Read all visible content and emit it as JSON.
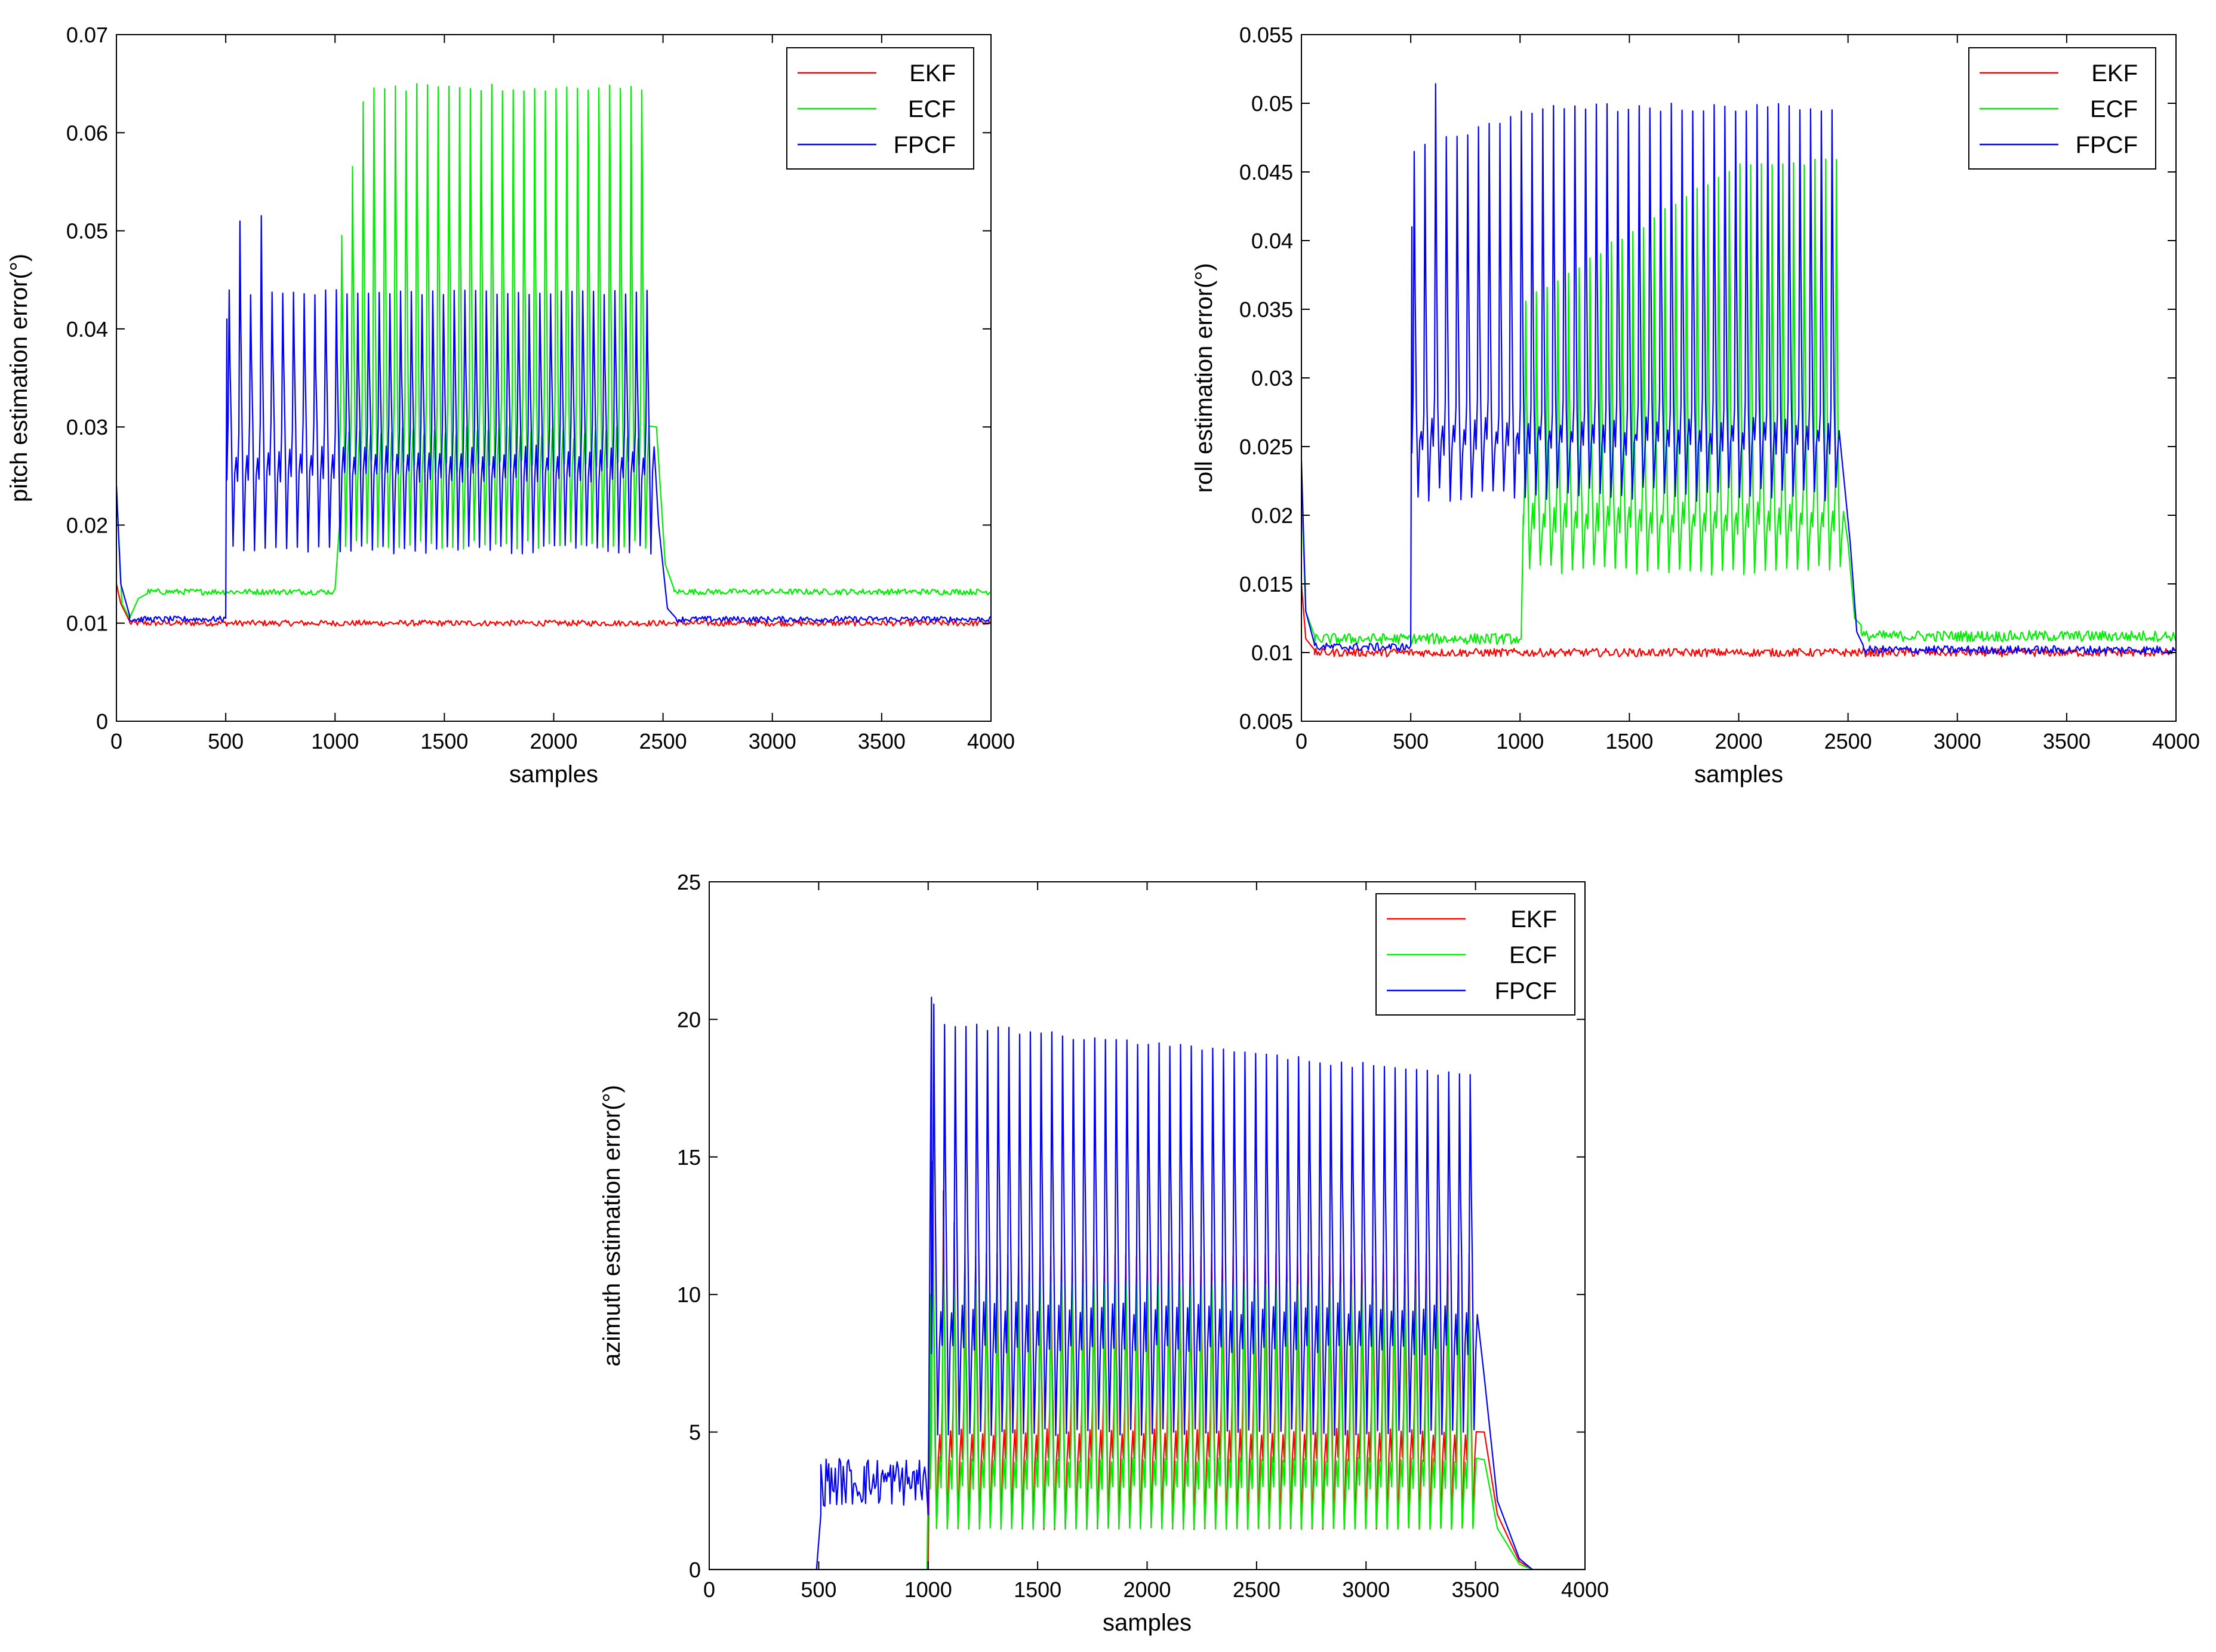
{
  "chart_data": [
    {
      "type": "line",
      "xlabel": "samples",
      "ylabel": "pitch estimation error(°)",
      "xlim": [
        0,
        4000
      ],
      "ylim": [
        0,
        0.07
      ],
      "xticks": [
        0,
        500,
        1000,
        1500,
        2000,
        2500,
        3000,
        3500,
        4000
      ],
      "xtick_labels": [
        "0",
        "500",
        "1000",
        "1500",
        "2000",
        "2500",
        "3000",
        "3500",
        "4000"
      ],
      "yticks": [
        0,
        0.01,
        0.02,
        0.03,
        0.04,
        0.05,
        0.06,
        0.07
      ],
      "ytick_labels": [
        "0",
        "0.01",
        "0.02",
        "0.03",
        "0.04",
        "0.05",
        "0.06",
        "0.07"
      ],
      "legend_position": "top-right",
      "series": [
        {
          "name": "EKF",
          "color": "#ff0000",
          "segments": [
            {
              "kind": "pts",
              "pts": [
                [
                  0,
                  0.014
                ],
                [
                  20,
                  0.012
                ],
                [
                  60,
                  0.0102
                ]
              ]
            },
            {
              "kind": "flat",
              "x0": 60,
              "x1": 4000,
              "base": 0.01,
              "noise": 0.0003
            }
          ]
        },
        {
          "name": "ECF",
          "color": "#00ee00",
          "segments": [
            {
              "kind": "pts",
              "pts": [
                [
                  0,
                  0.024
                ],
                [
                  25,
                  0.012
                ],
                [
                  60,
                  0.0105
                ],
                [
                  100,
                  0.0125
                ],
                [
                  140,
                  0.013
                ]
              ]
            },
            {
              "kind": "flat",
              "x0": 140,
              "x1": 990,
              "base": 0.0132,
              "noise": 0.0003
            },
            {
              "kind": "pts",
              "pts": [
                [
                  1000,
                  0.0135
                ],
                [
                  1020,
                  0.02
                ]
              ]
            },
            {
              "kind": "osc",
              "x0": 1020,
              "x1": 2460,
              "period": 49,
              "peakStart": 0.05,
              "peakEnd": 0.065,
              "peakRamp": 110,
              "troughs": [
                0.018,
                0.026,
                0.033
              ]
            },
            {
              "kind": "pts",
              "pts": [
                [
                  2470,
                  0.03
                ],
                [
                  2510,
                  0.016
                ],
                [
                  2550,
                  0.0135
                ]
              ]
            },
            {
              "kind": "flat",
              "x0": 2550,
              "x1": 4000,
              "base": 0.0132,
              "noise": 0.0003
            }
          ]
        },
        {
          "name": "FPCF",
          "color": "#0000ff",
          "segments": [
            {
              "kind": "pts",
              "pts": [
                [
                  0,
                  0.024
                ],
                [
                  20,
                  0.014
                ],
                [
                  60,
                  0.0108
                ]
              ]
            },
            {
              "kind": "flat",
              "x0": 60,
              "x1": 495,
              "base": 0.0104,
              "noise": 0.0003
            },
            {
              "kind": "pts",
              "pts": [
                [
                  500,
                  0.0105
                ],
                [
                  505,
                  0.041
                ]
              ]
            },
            {
              "kind": "osc",
              "x0": 505,
              "x1": 2470,
              "period": 49,
              "peakStart": 0.044,
              "peakEnd": 0.044,
              "peakRamp": 1,
              "peakSpecial": [
                [
                  1,
                  0.0515
                ],
                [
                  3,
                  0.052
                ]
              ],
              "troughs": [
                0.0175,
                0.025,
                0.03
              ]
            },
            {
              "kind": "pts",
              "pts": [
                [
                  2480,
                  0.02
                ],
                [
                  2520,
                  0.0115
                ],
                [
                  2560,
                  0.0105
                ]
              ]
            },
            {
              "kind": "flat",
              "x0": 2560,
              "x1": 4000,
              "base": 0.0104,
              "noise": 0.0003
            }
          ]
        }
      ]
    },
    {
      "type": "line",
      "xlabel": "samples",
      "ylabel": "roll estimation error(°)",
      "xlim": [
        0,
        4000
      ],
      "ylim": [
        0.005,
        0.055
      ],
      "xticks": [
        0,
        500,
        1000,
        1500,
        2000,
        2500,
        3000,
        3500,
        4000
      ],
      "xtick_labels": [
        "0",
        "500",
        "1000",
        "1500",
        "2000",
        "2500",
        "3000",
        "3500",
        "4000"
      ],
      "yticks": [
        0.005,
        0.01,
        0.015,
        0.02,
        0.025,
        0.03,
        0.035,
        0.04,
        0.045,
        0.05,
        0.055
      ],
      "ytick_labels": [
        "0.005",
        "0.01",
        "0.015",
        "0.02",
        "0.025",
        "0.03",
        "0.035",
        "0.04",
        "0.045",
        "0.05",
        "0.055"
      ],
      "legend_position": "top-right",
      "series": [
        {
          "name": "EKF",
          "color": "#ff0000",
          "segments": [
            {
              "kind": "pts",
              "pts": [
                [
                  0,
                  0.015
                ],
                [
                  20,
                  0.011
                ],
                [
                  60,
                  0.0102
                ]
              ]
            },
            {
              "kind": "flat",
              "x0": 60,
              "x1": 4000,
              "base": 0.01,
              "noise": 0.0003
            }
          ]
        },
        {
          "name": "ECF",
          "color": "#00ee00",
          "segments": [
            {
              "kind": "pts",
              "pts": [
                [
                  0,
                  0.022
                ],
                [
                  20,
                  0.013
                ],
                [
                  60,
                  0.0112
                ]
              ]
            },
            {
              "kind": "flat",
              "x0": 60,
              "x1": 1000,
              "base": 0.011,
              "noise": 0.0004
            },
            {
              "kind": "pts",
              "pts": [
                [
                  1005,
                  0.011
                ],
                [
                  1015,
                  0.02
                ]
              ]
            },
            {
              "kind": "osc",
              "x0": 1015,
              "x1": 2490,
              "period": 49,
              "peakStart": 0.036,
              "peakEnd": 0.046,
              "peakRamp": 1000,
              "troughs": [
                0.016,
                0.019,
                0.022
              ]
            },
            {
              "kind": "pts",
              "pts": [
                [
                  2500,
                  0.018
                ],
                [
                  2530,
                  0.0125
                ],
                [
                  2560,
                  0.012
                ]
              ]
            },
            {
              "kind": "flat",
              "x0": 2560,
              "x1": 4000,
              "base": 0.0112,
              "noise": 0.0004
            }
          ]
        },
        {
          "name": "FPCF",
          "color": "#0000ff",
          "segments": [
            {
              "kind": "pts",
              "pts": [
                [
                  0,
                  0.024
                ],
                [
                  20,
                  0.013
                ],
                [
                  60,
                  0.0106
                ]
              ]
            },
            {
              "kind": "flat",
              "x0": 60,
              "x1": 495,
              "base": 0.0104,
              "noise": 0.0003
            },
            {
              "kind": "pts",
              "pts": [
                [
                  500,
                  0.0105
                ],
                [
                  505,
                  0.041
                ]
              ]
            },
            {
              "kind": "osc",
              "x0": 505,
              "x1": 2500,
              "period": 49,
              "peakStart": 0.047,
              "peakEnd": 0.05,
              "peakRamp": 600,
              "peakSpecial": [
                [
                  2,
                  0.052
                ]
              ],
              "troughs": [
                0.0215,
                0.025,
                0.028
              ]
            },
            {
              "kind": "pts",
              "pts": [
                [
                  2510,
                  0.018
                ],
                [
                  2540,
                  0.0115
                ],
                [
                  2570,
                  0.0105
                ]
              ]
            },
            {
              "kind": "flat",
              "x0": 2570,
              "x1": 4000,
              "base": 0.0102,
              "noise": 0.0003
            }
          ]
        }
      ]
    },
    {
      "type": "line",
      "xlabel": "samples",
      "ylabel": "azimuth estimation error(°)",
      "xlim": [
        0,
        4000
      ],
      "ylim": [
        0,
        25
      ],
      "xticks": [
        0,
        500,
        1000,
        1500,
        2000,
        2500,
        3000,
        3500,
        4000
      ],
      "xtick_labels": [
        "0",
        "500",
        "1000",
        "1500",
        "2000",
        "2500",
        "3000",
        "3500",
        "4000"
      ],
      "yticks": [
        0,
        5,
        10,
        15,
        20,
        25
      ],
      "ytick_labels": [
        "0",
        "5",
        "10",
        "15",
        "20",
        "25"
      ],
      "legend_position": "top-right",
      "series": [
        {
          "name": "EKF",
          "color": "#ff0000",
          "segments": [
            {
              "kind": "pts",
              "pts": [
                [
                  0,
                  0
                ],
                [
                  1000,
                  0
                ],
                [
                  1010,
                  9
                ]
              ]
            },
            {
              "kind": "osc",
              "x0": 1010,
              "x1": 3530,
              "period": 49,
              "peakStart": 15,
              "peakEnd": 11.5,
              "peakRamp": 150,
              "troughs": [
                1.5,
                4,
                6
              ]
            },
            {
              "kind": "pts",
              "pts": [
                [
                  3540,
                  5
                ],
                [
                  3600,
                  2
                ],
                [
                  3700,
                  0.3
                ],
                [
                  3760,
                  0
                ],
                [
                  4000,
                  0
                ]
              ]
            }
          ]
        },
        {
          "name": "ECF",
          "color": "#00ee00",
          "segments": [
            {
              "kind": "pts",
              "pts": [
                [
                  0,
                  0
                ],
                [
                  995,
                  0
                ],
                [
                  1010,
                  10
                ]
              ]
            },
            {
              "kind": "osc",
              "x0": 1010,
              "x1": 3530,
              "period": 49,
              "peakStart": 14,
              "peakEnd": 10.5,
              "peakRamp": 150,
              "troughs": [
                1.5,
                3,
                5
              ]
            },
            {
              "kind": "pts",
              "pts": [
                [
                  3540,
                  4
                ],
                [
                  3600,
                  1.5
                ],
                [
                  3700,
                  0.2
                ],
                [
                  3760,
                  0
                ],
                [
                  4000,
                  0
                ]
              ]
            }
          ]
        },
        {
          "name": "FPCF",
          "color": "#0000ff",
          "segments": [
            {
              "kind": "pts",
              "pts": [
                [
                  0,
                  0
                ],
                [
                  490,
                  0
                ],
                [
                  510,
                  2
                ]
              ]
            },
            {
              "kind": "flat",
              "x0": 510,
              "x1": 990,
              "base": 3.2,
              "noise": 0.9
            },
            {
              "kind": "pts",
              "pts": [
                [
                  1000,
                  2
                ],
                [
                  1015,
                  20.8
                ]
              ]
            },
            {
              "kind": "osc",
              "x0": 1015,
              "x1": 3530,
              "period": 49,
              "peakStart": 20,
              "peakEnd": 18,
              "peakRamp": 2500,
              "peakSpecial": [
                [
                  0,
                  20.8
                ]
              ],
              "troughs": [
                5,
                8,
                11
              ]
            },
            {
              "kind": "pts",
              "pts": [
                [
                  3540,
                  7
                ],
                [
                  3600,
                  2.5
                ],
                [
                  3700,
                  0.4
                ],
                [
                  3760,
                  0
                ],
                [
                  4000,
                  0
                ]
              ]
            }
          ]
        }
      ]
    }
  ]
}
